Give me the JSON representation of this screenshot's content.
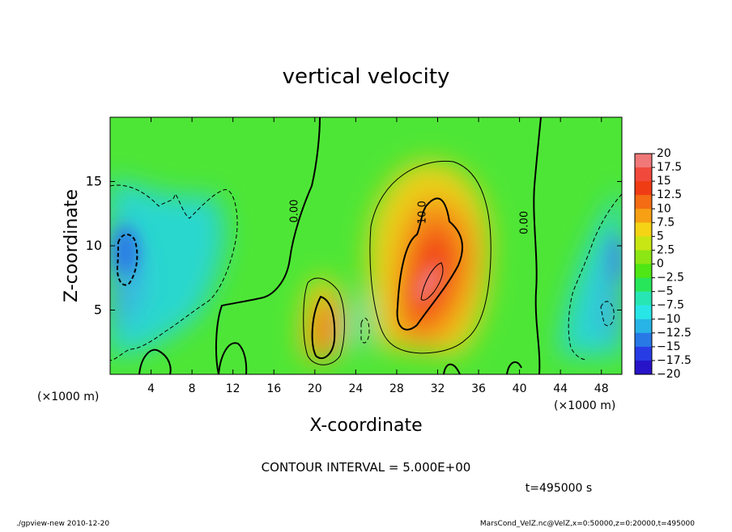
{
  "chart_data": {
    "type": "heatmap",
    "title": "vertical velocity",
    "xlabel": "X-coordinate",
    "ylabel": "Z-coordinate",
    "x_unit_left": "(×1000 m)",
    "x_unit_right": "(×1000 m)",
    "x_range": [
      0,
      50
    ],
    "y_range": [
      0,
      20
    ],
    "x_ticks": [
      "4",
      "8",
      "12",
      "16",
      "20",
      "24",
      "28",
      "32",
      "36",
      "40",
      "44",
      "48"
    ],
    "y_ticks": [
      "5",
      "10",
      "15"
    ],
    "contour_interval_text": "CONTOUR INTERVAL = 5.000E+00",
    "time_text": "t=495000 s",
    "footer_left": "./gpview-new  2010-12-20",
    "footer_right": "MarsCond_VelZ.nc@VelZ,x=0:50000,z=0:20000,t=495000",
    "contour_labels": [
      {
        "text": "0.00",
        "x": 18.3,
        "y": 12.7
      },
      {
        "text": "10.0",
        "x": 30.8,
        "y": 12.6
      },
      {
        "text": "0.00",
        "x": 40.8,
        "y": 11.8
      }
    ],
    "features": [
      {
        "kind": "max",
        "x": 31.0,
        "y": 7.0,
        "value": 17.5
      },
      {
        "kind": "max",
        "x": 20.9,
        "y": 4.0,
        "value": 12.5
      },
      {
        "kind": "min",
        "x": 1.6,
        "y": 9.0,
        "value": -12.5
      },
      {
        "kind": "min",
        "x": 49.2,
        "y": 10.0,
        "value": -10
      }
    ],
    "colorbar": {
      "labels": [
        "20",
        "17.5",
        "15",
        "12.5",
        "10",
        "7.5",
        "5",
        "2.5",
        "0",
        "−2.5",
        "−5",
        "−7.5",
        "−10",
        "−12.5",
        "−15",
        "−17.5",
        "−20"
      ],
      "colors": [
        "#f07878",
        "#f14a3c",
        "#f03c14",
        "#f46c14",
        "#f7a014",
        "#f4d414",
        "#c8e614",
        "#8ce614",
        "#4ee614",
        "#28e65a",
        "#28e6b4",
        "#28e6e6",
        "#28b4e6",
        "#2878e6",
        "#283ce6",
        "#2814c8",
        "#5a14c8"
      ]
    }
  }
}
